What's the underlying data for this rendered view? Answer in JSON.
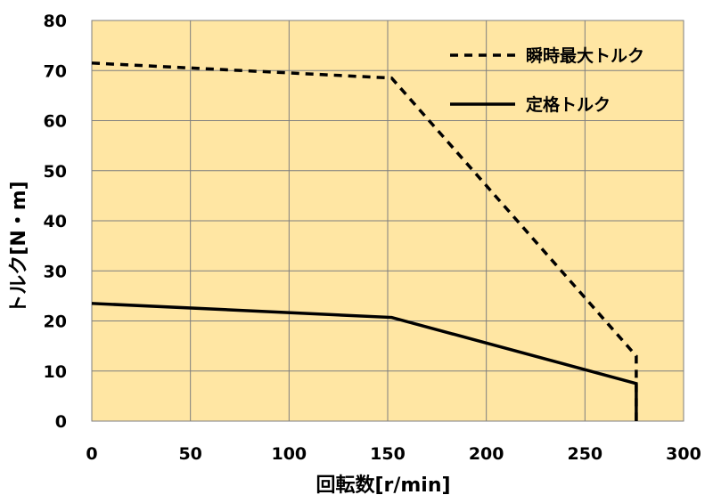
{
  "chart_data": {
    "type": "line",
    "xlabel": "回転数[r/min]",
    "ylabel": "トルク[N・m]",
    "xlim": [
      0,
      300
    ],
    "ylim": [
      0,
      80
    ],
    "x_ticks": [
      0,
      50,
      100,
      150,
      200,
      250,
      300
    ],
    "y_ticks": [
      0,
      10,
      20,
      30,
      40,
      50,
      60,
      70,
      80
    ],
    "grid": true,
    "plot_background": "#FFE6A3",
    "legend_position": "top-right",
    "series": [
      {
        "name": "瞬時最大トルク",
        "style": "dashed",
        "color": "#000000",
        "x": [
          0,
          152,
          276,
          276
        ],
        "y": [
          71.5,
          68.5,
          13,
          0
        ]
      },
      {
        "name": "定格トルク",
        "style": "solid",
        "color": "#000000",
        "x": [
          0,
          152,
          276,
          276
        ],
        "y": [
          23.5,
          20.7,
          7.5,
          0
        ]
      }
    ]
  }
}
